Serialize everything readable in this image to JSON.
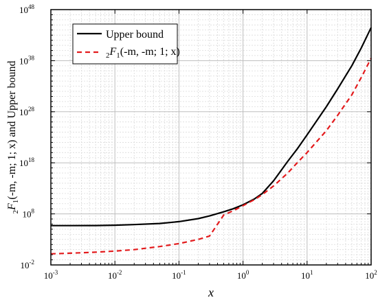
{
  "chart_data": {
    "type": "line",
    "title": "",
    "xlabel": "x",
    "ylabel": "2F1(-m, -m; 1; x) and Upper bound",
    "x_scale": "log",
    "y_scale": "log",
    "xlim": [
      0.001,
      100
    ],
    "ylim": [
      0.01,
      1e+48
    ],
    "x_ticks": [
      {
        "value": 0.001,
        "base": "10",
        "exp": "-3"
      },
      {
        "value": 0.01,
        "base": "10",
        "exp": "-2"
      },
      {
        "value": 0.1,
        "base": "10",
        "exp": "-1"
      },
      {
        "value": 1,
        "base": "10",
        "exp": "0"
      },
      {
        "value": 10,
        "base": "10",
        "exp": "1"
      },
      {
        "value": 100,
        "base": "10",
        "exp": "2"
      }
    ],
    "y_ticks": [
      {
        "value": 0.01,
        "base": "10",
        "exp": "-2"
      },
      {
        "value": 100000000.0,
        "base": "10",
        "exp": "8"
      },
      {
        "value": 1e+18,
        "base": "10",
        "exp": "18"
      },
      {
        "value": 1e+28,
        "base": "10",
        "exp": "28"
      },
      {
        "value": 1e+38,
        "base": "10",
        "exp": "38"
      },
      {
        "value": 1e+48,
        "base": "10",
        "exp": "48"
      }
    ],
    "grid": true,
    "legend_position": "top-left",
    "series": [
      {
        "name": "Upper bound",
        "color": "#000000",
        "style": "solid",
        "x": [
          0.001,
          0.002,
          0.005,
          0.01,
          0.02,
          0.05,
          0.1,
          0.2,
          0.3,
          0.5,
          0.7,
          1,
          1.5,
          2,
          3,
          5,
          7,
          10,
          20,
          30,
          50,
          70,
          100
        ],
        "y": [
          500000.0,
          500000.0,
          520000.0,
          600000.0,
          800000.0,
          1300000.0,
          3000000.0,
          12000000.0,
          40000000.0,
          250000000.0,
          1000000000.0,
          6000000000.0,
          80000000000.0,
          1000000000000.0,
          300000000000000.0,
          2e+18,
          5e+20,
          3e+23,
          1e+29,
          3e+32,
          1e+37,
          3e+40,
          3e+44
        ]
      },
      {
        "name": "2F1(-m, -m; 1; x)",
        "name_parts": {
          "pre": "2",
          "func": "F",
          "sub": "1",
          "args": "(-m, -m; 1; x)"
        },
        "color": "#e31a1c",
        "style": "dashed",
        "x": [
          0.001,
          0.002,
          0.005,
          0.01,
          0.02,
          0.05,
          0.1,
          0.2,
          0.3,
          0.5,
          0.7,
          1,
          1.5,
          2,
          3,
          5,
          7,
          10,
          20,
          30,
          50,
          70,
          100
        ],
        "y": [
          1.5,
          2,
          3.2,
          5.2,
          10,
          40,
          150,
          1000.0,
          4500.0,
          60000000.0,
          400000000.0,
          4000000000.0,
          60000000000.0,
          600000000000.0,
          30000000000000.0,
          1e+16,
          1e+18,
          1e+20,
          2e+24,
          2e+27,
          2e+31,
          5e+34,
          3e+38
        ]
      }
    ]
  }
}
